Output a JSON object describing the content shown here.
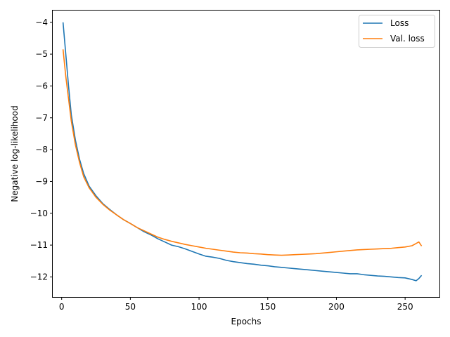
{
  "chart_data": {
    "type": "line",
    "xlabel": "Epochs",
    "ylabel": "Negative log-likelihood",
    "xlim": [
      -6.5,
      275
    ],
    "ylim": [
      -12.63,
      -3.63
    ],
    "xticks": [
      0,
      50,
      100,
      150,
      200,
      250
    ],
    "yticks": [
      -12,
      -11,
      -10,
      -9,
      -8,
      -7,
      -6,
      -5,
      -4
    ],
    "grid": false,
    "legend": "top-right",
    "series": [
      {
        "name": "Loss",
        "color": "#1f77b4",
        "points": [
          [
            1,
            -4.0
          ],
          [
            3,
            -5.0
          ],
          [
            5,
            -6.0
          ],
          [
            7,
            -6.9
          ],
          [
            10,
            -7.7
          ],
          [
            13,
            -8.3
          ],
          [
            16,
            -8.75
          ],
          [
            20,
            -9.15
          ],
          [
            25,
            -9.45
          ],
          [
            30,
            -9.7
          ],
          [
            35,
            -9.88
          ],
          [
            40,
            -10.05
          ],
          [
            45,
            -10.2
          ],
          [
            50,
            -10.32
          ],
          [
            55,
            -10.45
          ],
          [
            60,
            -10.58
          ],
          [
            65,
            -10.68
          ],
          [
            70,
            -10.8
          ],
          [
            75,
            -10.9
          ],
          [
            80,
            -11.0
          ],
          [
            85,
            -11.05
          ],
          [
            90,
            -11.12
          ],
          [
            95,
            -11.2
          ],
          [
            100,
            -11.28
          ],
          [
            105,
            -11.35
          ],
          [
            110,
            -11.38
          ],
          [
            115,
            -11.42
          ],
          [
            120,
            -11.48
          ],
          [
            125,
            -11.52
          ],
          [
            130,
            -11.55
          ],
          [
            135,
            -11.58
          ],
          [
            140,
            -11.6
          ],
          [
            145,
            -11.63
          ],
          [
            150,
            -11.65
          ],
          [
            155,
            -11.68
          ],
          [
            160,
            -11.7
          ],
          [
            165,
            -11.72
          ],
          [
            170,
            -11.74
          ],
          [
            175,
            -11.76
          ],
          [
            180,
            -11.78
          ],
          [
            185,
            -11.8
          ],
          [
            190,
            -11.82
          ],
          [
            195,
            -11.84
          ],
          [
            200,
            -11.86
          ],
          [
            205,
            -11.88
          ],
          [
            210,
            -11.9
          ],
          [
            215,
            -11.9
          ],
          [
            220,
            -11.93
          ],
          [
            225,
            -11.95
          ],
          [
            230,
            -11.97
          ],
          [
            235,
            -11.98
          ],
          [
            240,
            -12.0
          ],
          [
            245,
            -12.02
          ],
          [
            250,
            -12.03
          ],
          [
            255,
            -12.08
          ],
          [
            258,
            -12.12
          ],
          [
            260,
            -12.05
          ],
          [
            262,
            -11.95
          ]
        ]
      },
      {
        "name": "Val. loss",
        "color": "#ff7f0e",
        "points": [
          [
            1,
            -4.85
          ],
          [
            3,
            -5.7
          ],
          [
            5,
            -6.4
          ],
          [
            7,
            -7.1
          ],
          [
            10,
            -7.85
          ],
          [
            13,
            -8.4
          ],
          [
            16,
            -8.85
          ],
          [
            20,
            -9.2
          ],
          [
            25,
            -9.5
          ],
          [
            30,
            -9.72
          ],
          [
            35,
            -9.9
          ],
          [
            40,
            -10.05
          ],
          [
            45,
            -10.2
          ],
          [
            50,
            -10.32
          ],
          [
            55,
            -10.45
          ],
          [
            60,
            -10.55
          ],
          [
            65,
            -10.65
          ],
          [
            70,
            -10.75
          ],
          [
            75,
            -10.82
          ],
          [
            80,
            -10.88
          ],
          [
            85,
            -10.93
          ],
          [
            90,
            -10.98
          ],
          [
            95,
            -11.02
          ],
          [
            100,
            -11.06
          ],
          [
            105,
            -11.1
          ],
          [
            110,
            -11.13
          ],
          [
            115,
            -11.16
          ],
          [
            120,
            -11.19
          ],
          [
            125,
            -11.22
          ],
          [
            130,
            -11.24
          ],
          [
            135,
            -11.25
          ],
          [
            140,
            -11.27
          ],
          [
            145,
            -11.28
          ],
          [
            150,
            -11.3
          ],
          [
            155,
            -11.31
          ],
          [
            160,
            -11.32
          ],
          [
            165,
            -11.31
          ],
          [
            170,
            -11.3
          ],
          [
            175,
            -11.29
          ],
          [
            180,
            -11.28
          ],
          [
            185,
            -11.27
          ],
          [
            190,
            -11.25
          ],
          [
            195,
            -11.23
          ],
          [
            200,
            -11.21
          ],
          [
            205,
            -11.19
          ],
          [
            210,
            -11.17
          ],
          [
            215,
            -11.15
          ],
          [
            220,
            -11.14
          ],
          [
            225,
            -11.13
          ],
          [
            230,
            -11.12
          ],
          [
            235,
            -11.11
          ],
          [
            240,
            -11.1
          ],
          [
            245,
            -11.08
          ],
          [
            250,
            -11.06
          ],
          [
            255,
            -11.02
          ],
          [
            258,
            -10.95
          ],
          [
            260,
            -10.9
          ],
          [
            262,
            -11.03
          ]
        ]
      }
    ]
  }
}
